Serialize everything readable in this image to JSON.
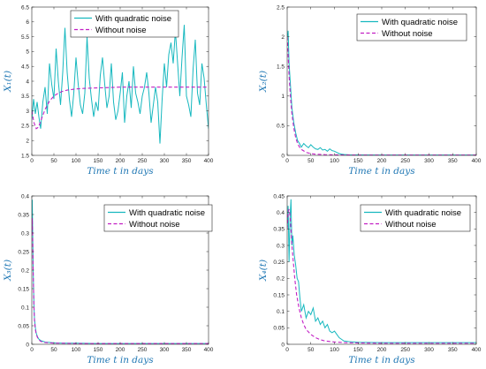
{
  "colors": {
    "noise": "#17b8bf",
    "deterministic": "#c21fc4",
    "axis_title": "#1f77b4",
    "frame": "#262626"
  },
  "chart_data": [
    {
      "type": "line",
      "xlabel": "Time t in days",
      "ylabel": "X₁(t)",
      "xlim": [
        0,
        400
      ],
      "ylim": [
        1.5,
        6.5
      ],
      "xticks": [
        0,
        50,
        100,
        150,
        200,
        250,
        300,
        350,
        400
      ],
      "yticks": [
        1.5,
        2,
        2.5,
        3,
        3.5,
        4,
        4.5,
        5,
        5.5,
        6,
        6.5
      ],
      "legend_position": "top-center",
      "series": [
        {
          "name": "With quadratic noise",
          "style": "solid",
          "x": [
            0,
            4,
            8,
            12,
            16,
            20,
            25,
            30,
            35,
            40,
            45,
            50,
            55,
            60,
            65,
            70,
            75,
            80,
            85,
            90,
            95,
            100,
            105,
            110,
            115,
            120,
            125,
            130,
            135,
            140,
            145,
            150,
            155,
            160,
            165,
            170,
            175,
            180,
            185,
            190,
            195,
            200,
            205,
            210,
            215,
            220,
            225,
            230,
            235,
            240,
            245,
            250,
            255,
            260,
            265,
            270,
            275,
            280,
            285,
            290,
            295,
            300,
            305,
            310,
            315,
            320,
            325,
            330,
            335,
            340,
            345,
            350,
            355,
            360,
            365,
            370,
            375,
            380,
            385,
            390,
            395,
            400
          ],
          "y": [
            2.7,
            3.4,
            2.9,
            3.3,
            2.8,
            2.4,
            3.3,
            3.8,
            2.9,
            4.6,
            3.9,
            3.4,
            5.1,
            4.0,
            3.2,
            4.3,
            5.8,
            4.3,
            3.4,
            2.8,
            3.6,
            4.8,
            3.9,
            3.2,
            2.9,
            3.6,
            5.5,
            4.1,
            3.4,
            2.8,
            3.3,
            3.0,
            4.2,
            4.8,
            3.9,
            3.1,
            3.5,
            4.6,
            3.3,
            2.7,
            3.0,
            3.6,
            4.3,
            2.6,
            3.5,
            4.0,
            3.1,
            4.5,
            3.6,
            3.3,
            2.9,
            3.5,
            3.8,
            4.3,
            3.6,
            2.6,
            3.2,
            3.8,
            3.3,
            1.9,
            3.4,
            4.6,
            3.8,
            4.9,
            5.3,
            4.6,
            5.7,
            4.6,
            3.5,
            4.8,
            5.9,
            3.5,
            3.2,
            2.8,
            4.4,
            5.4,
            3.6,
            3.2,
            4.6,
            4.1,
            3.2,
            2.4
          ]
        },
        {
          "name": "Without noise",
          "style": "dashed",
          "x": [
            0,
            5,
            10,
            15,
            20,
            25,
            30,
            40,
            50,
            60,
            70,
            80,
            90,
            100,
            120,
            140,
            160,
            180,
            200,
            250,
            300,
            350,
            400
          ],
          "y": [
            3.0,
            2.6,
            2.4,
            2.45,
            2.65,
            2.85,
            3.05,
            3.33,
            3.5,
            3.6,
            3.66,
            3.7,
            3.72,
            3.74,
            3.76,
            3.77,
            3.78,
            3.79,
            3.8,
            3.8,
            3.8,
            3.8,
            3.8
          ]
        }
      ]
    },
    {
      "type": "line",
      "xlabel": "Time t in days",
      "ylabel": "X₂(t)",
      "xlim": [
        0,
        400
      ],
      "ylim": [
        0,
        2.5
      ],
      "xticks": [
        0,
        50,
        100,
        150,
        200,
        250,
        300,
        350,
        400
      ],
      "yticks": [
        0,
        0.5,
        1,
        1.5,
        2,
        2.5
      ],
      "legend_position": "top-right",
      "series": [
        {
          "name": "With quadratic noise",
          "style": "solid",
          "x": [
            0,
            2,
            4,
            6,
            8,
            10,
            14,
            18,
            22,
            26,
            30,
            35,
            40,
            45,
            50,
            55,
            60,
            65,
            70,
            75,
            80,
            85,
            90,
            95,
            100,
            105,
            110,
            115,
            120,
            130,
            150,
            200,
            250,
            300,
            350,
            400
          ],
          "y": [
            2.0,
            2.1,
            1.55,
            1.3,
            1.05,
            0.8,
            0.55,
            0.38,
            0.25,
            0.2,
            0.14,
            0.2,
            0.16,
            0.13,
            0.18,
            0.14,
            0.11,
            0.1,
            0.13,
            0.09,
            0.1,
            0.07,
            0.11,
            0.08,
            0.07,
            0.05,
            0.03,
            0.02,
            0.015,
            0.01,
            0.008,
            0.006,
            0.005,
            0.005,
            0.005,
            0.005
          ]
        },
        {
          "name": "Without noise",
          "style": "dashed",
          "x": [
            0,
            2,
            4,
            6,
            8,
            10,
            14,
            18,
            22,
            26,
            30,
            40,
            50,
            60,
            80,
            100,
            150,
            200,
            300,
            400
          ],
          "y": [
            2.0,
            1.7,
            1.35,
            1.1,
            0.88,
            0.7,
            0.46,
            0.3,
            0.2,
            0.14,
            0.1,
            0.05,
            0.03,
            0.02,
            0.012,
            0.008,
            0.005,
            0.004,
            0.004,
            0.004
          ]
        }
      ]
    },
    {
      "type": "line",
      "xlabel": "Time t in days",
      "ylabel": "X₃(t)",
      "xlim": [
        0,
        400
      ],
      "ylim": [
        0,
        0.4
      ],
      "xticks": [
        0,
        50,
        100,
        150,
        200,
        250,
        300,
        350,
        400
      ],
      "yticks": [
        0,
        0.05,
        0.1,
        0.15,
        0.2,
        0.25,
        0.3,
        0.35,
        0.4
      ],
      "legend_position": "top-center",
      "series": [
        {
          "name": "With quadratic noise",
          "style": "solid",
          "x": [
            0,
            1,
            2,
            3,
            4,
            5,
            6,
            8,
            10,
            13,
            16,
            20,
            25,
            30,
            40,
            50,
            70,
            100,
            150,
            200,
            250,
            300,
            350,
            400
          ],
          "y": [
            0.3,
            0.39,
            0.3,
            0.21,
            0.15,
            0.1,
            0.07,
            0.045,
            0.03,
            0.02,
            0.014,
            0.01,
            0.008,
            0.006,
            0.005,
            0.004,
            0.003,
            0.003,
            0.002,
            0.002,
            0.002,
            0.002,
            0.002,
            0.002
          ]
        },
        {
          "name": "Without noise",
          "style": "dashed",
          "x": [
            0,
            1,
            2,
            3,
            4,
            5,
            6,
            8,
            10,
            13,
            16,
            20,
            25,
            30,
            40,
            50,
            70,
            100,
            150,
            200,
            300,
            400
          ],
          "y": [
            0.3,
            0.34,
            0.28,
            0.2,
            0.14,
            0.095,
            0.065,
            0.04,
            0.027,
            0.018,
            0.012,
            0.008,
            0.006,
            0.005,
            0.004,
            0.003,
            0.003,
            0.002,
            0.002,
            0.002,
            0.002,
            0.002
          ]
        }
      ]
    },
    {
      "type": "line",
      "xlabel": "Time t in days",
      "ylabel": "X₄(t)",
      "xlim": [
        0,
        400
      ],
      "ylim": [
        0,
        0.45
      ],
      "xticks": [
        0,
        50,
        100,
        150,
        200,
        250,
        300,
        350,
        400
      ],
      "yticks": [
        0,
        0.05,
        0.1,
        0.15,
        0.2,
        0.25,
        0.3,
        0.35,
        0.4,
        0.45
      ],
      "legend_position": "top-right",
      "series": [
        {
          "name": "With quadratic noise",
          "style": "solid",
          "x": [
            0,
            2,
            4,
            6,
            8,
            10,
            12,
            15,
            18,
            21,
            24,
            27,
            30,
            35,
            40,
            45,
            50,
            55,
            60,
            65,
            70,
            75,
            80,
            85,
            90,
            95,
            100,
            105,
            110,
            115,
            120,
            130,
            150,
            200,
            250,
            300,
            350,
            400
          ],
          "y": [
            0.35,
            0.42,
            0.25,
            0.38,
            0.44,
            0.3,
            0.33,
            0.27,
            0.24,
            0.2,
            0.19,
            0.14,
            0.1,
            0.12,
            0.08,
            0.1,
            0.09,
            0.11,
            0.07,
            0.08,
            0.06,
            0.07,
            0.05,
            0.06,
            0.04,
            0.035,
            0.04,
            0.03,
            0.02,
            0.015,
            0.01,
            0.008,
            0.006,
            0.005,
            0.005,
            0.005,
            0.005,
            0.005
          ]
        },
        {
          "name": "Without noise",
          "style": "dashed",
          "x": [
            0,
            2,
            4,
            6,
            8,
            10,
            13,
            16,
            20,
            25,
            30,
            35,
            40,
            50,
            60,
            70,
            80,
            100,
            120,
            150,
            200,
            300,
            400
          ],
          "y": [
            0.35,
            0.4,
            0.41,
            0.39,
            0.35,
            0.3,
            0.25,
            0.2,
            0.15,
            0.11,
            0.08,
            0.06,
            0.045,
            0.03,
            0.02,
            0.014,
            0.01,
            0.007,
            0.005,
            0.004,
            0.003,
            0.003,
            0.003
          ]
        }
      ]
    }
  ]
}
